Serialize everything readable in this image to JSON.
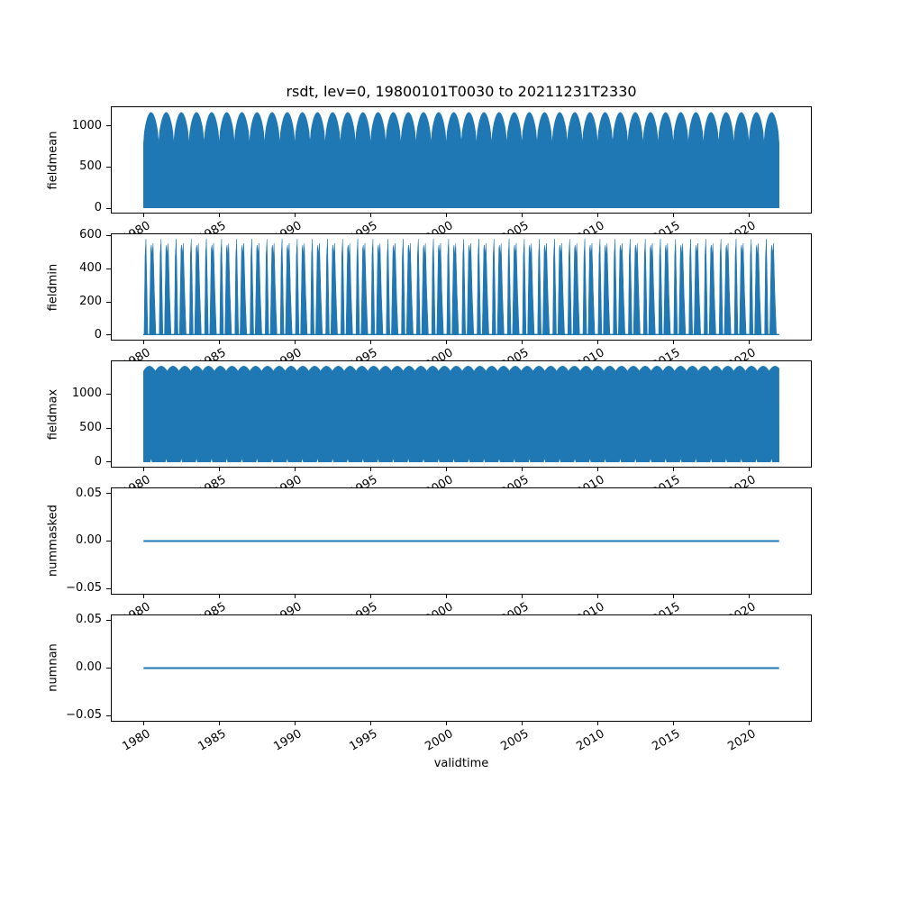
{
  "figure": {
    "title": "rsdt, lev=0, 19800101T0030 to 20211231T2330",
    "xlabel": "validtime",
    "background": "#ffffff",
    "accent_color": "#1f77b4",
    "axis_color": "#000000"
  },
  "x_axis": {
    "lim": [
      1977.9,
      2024.1
    ],
    "data_start": 1980,
    "data_end": 2022,
    "tick_label_rotation_deg": 30,
    "ticks": [
      {
        "v": 1980,
        "label": "1980"
      },
      {
        "v": 1985,
        "label": "1985"
      },
      {
        "v": 1990,
        "label": "1990"
      },
      {
        "v": 1995,
        "label": "1995"
      },
      {
        "v": 2000,
        "label": "2000"
      },
      {
        "v": 2005,
        "label": "2005"
      },
      {
        "v": 2010,
        "label": "2010"
      },
      {
        "v": 2015,
        "label": "2015"
      },
      {
        "v": 2020,
        "label": "2020"
      }
    ]
  },
  "chart_data": [
    {
      "type": "area",
      "generator": "annual-dome",
      "name": "fieldmean",
      "ylabel": "fieldmean",
      "ylim": [
        -58.5,
        1227.5
      ],
      "yticks": [
        {
          "v": 0,
          "label": "0"
        },
        {
          "v": 500,
          "label": "500"
        },
        {
          "v": 1000,
          "label": "1000"
        }
      ],
      "pattern": "dense diurnal oscillation filled from 0 up to an annual dome-shaped top envelope, one dome per year 1980-2021",
      "period_years": 1,
      "envelope_peak": 1165,
      "envelope_valley": 790,
      "fill_base": 0
    },
    {
      "type": "area",
      "generator": "annual-spikes",
      "name": "fieldmin",
      "ylabel": "fieldmin",
      "ylim": [
        -28.9,
        606.9
      ],
      "yticks": [
        {
          "v": 0,
          "label": "0"
        },
        {
          "v": 200,
          "label": "200"
        },
        {
          "v": 400,
          "label": "400"
        },
        {
          "v": 600,
          "label": "600"
        }
      ],
      "pattern": "two triangular spike clusters per year: one tall narrow spike to ~578 and one double-tipped spike to ~545/552 with dip ~480, returning to ~0 between",
      "period_years": 1,
      "spike_profile": [
        [
          0.0,
          4
        ],
        [
          0.04,
          4
        ],
        [
          0.1,
          480
        ],
        [
          0.16,
          578
        ],
        [
          0.22,
          300
        ],
        [
          0.28,
          4
        ],
        [
          0.38,
          4
        ],
        [
          0.48,
          520
        ],
        [
          0.52,
          542
        ],
        [
          0.57,
          480
        ],
        [
          0.63,
          552
        ],
        [
          0.72,
          250
        ],
        [
          0.82,
          4
        ],
        [
          1.0,
          4
        ]
      ]
    },
    {
      "type": "area",
      "generator": "dense-scallop",
      "name": "fieldmax",
      "ylabel": "fieldmax",
      "ylim": [
        -70.5,
        1480.5
      ],
      "yticks": [
        {
          "v": 0,
          "label": "0"
        },
        {
          "v": 500,
          "label": "500"
        },
        {
          "v": 1000,
          "label": "1000"
        }
      ],
      "pattern": "nearly solid fill 0 to ~1410 with scalloped top envelope (crests ~1410, cusps ~1335) and small white notches at the baseline once per year",
      "scallop_period_years": 0.78,
      "top_crest": 1410,
      "top_cusp": 1335,
      "fill_base": 0,
      "bottom_notch": {
        "height": 58,
        "period_years": 1,
        "phase": 0.44,
        "width_years": 0.12
      }
    },
    {
      "type": "line",
      "generator": "flat-line",
      "name": "nummasked",
      "ylabel": "nummasked",
      "ylim": [
        -0.0555,
        0.0555
      ],
      "yticks": [
        {
          "v": -0.05,
          "label": "−0.05"
        },
        {
          "v": 0,
          "label": "0.00"
        },
        {
          "v": 0.05,
          "label": "0.05"
        }
      ],
      "pattern": "constant zero line from 1980 to 2022",
      "value": 0.0
    },
    {
      "type": "line",
      "generator": "flat-line",
      "name": "numnan",
      "ylabel": "numnan",
      "ylim": [
        -0.0555,
        0.0555
      ],
      "yticks": [
        {
          "v": -0.05,
          "label": "−0.05"
        },
        {
          "v": 0,
          "label": "0.00"
        },
        {
          "v": 0.05,
          "label": "0.05"
        }
      ],
      "pattern": "constant zero line from 1980 to 2022",
      "value": 0.0
    }
  ]
}
